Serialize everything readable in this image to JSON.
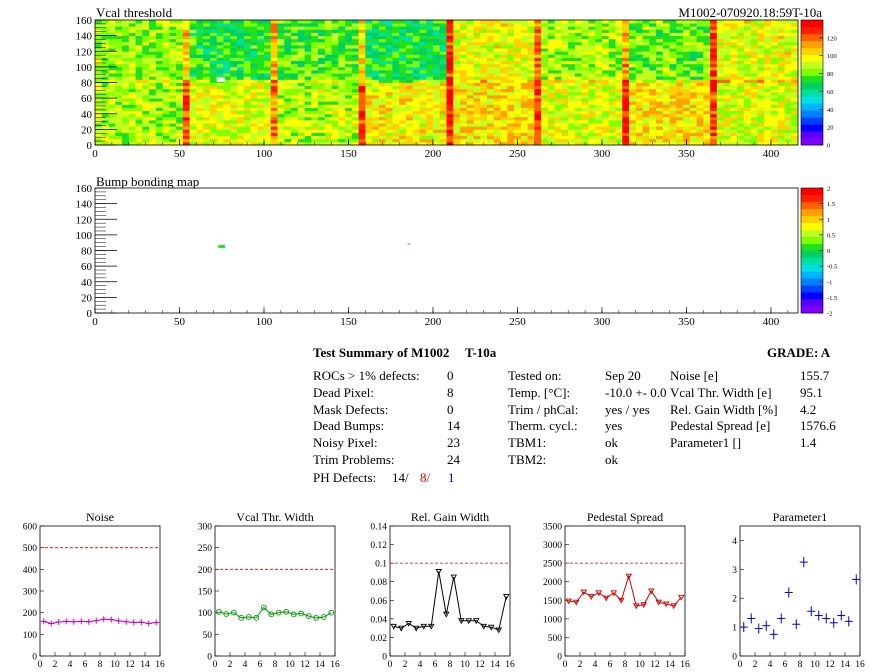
{
  "map1": {
    "title": "Vcal threshold",
    "id": "M1002-070920.18:59T-10a",
    "x_ticks": [
      "0",
      "50",
      "100",
      "150",
      "200",
      "250",
      "300",
      "350",
      "400"
    ],
    "y_ticks": [
      "0",
      "20",
      "40",
      "60",
      "80",
      "100",
      "120",
      "140",
      "160"
    ],
    "z_ticks": [
      "0",
      "20",
      "40",
      "60",
      "80",
      "100",
      "120"
    ],
    "xlim": [
      0,
      416
    ],
    "ylim": [
      0,
      160
    ],
    "zlim": [
      0,
      140
    ]
  },
  "map2": {
    "title": "Bump bonding map",
    "x_ticks": [
      "0",
      "50",
      "100",
      "150",
      "200",
      "250",
      "300",
      "350",
      "400"
    ],
    "y_ticks": [
      "0",
      "20",
      "40",
      "60",
      "80",
      "100",
      "120",
      "140",
      "160"
    ],
    "z_ticks": [
      "-2",
      "-1.5",
      "-1",
      "-0.5",
      "0",
      "0.5",
      "1",
      "1.5",
      "2"
    ],
    "xlim": [
      0,
      416
    ],
    "ylim": [
      0,
      160
    ],
    "zlim": [
      -2,
      2
    ]
  },
  "summary": {
    "heading": "Test Summary of M1002",
    "temp_tag": "T-10a",
    "grade_label": "GRADE:  A",
    "col1": [
      {
        "label": "ROCs > 1% defects:",
        "value": "0"
      },
      {
        "label": "Dead Pixel:",
        "value": "8"
      },
      {
        "label": "Mask Defects:",
        "value": "0"
      },
      {
        "label": "Dead Bumps:",
        "value": "14"
      },
      {
        "label": "Noisy Pixel:",
        "value": "23"
      },
      {
        "label": "Trim Problems:",
        "value": "24"
      }
    ],
    "ph_label": "PH Defects:",
    "ph_values": [
      "14/",
      "8/",
      "1"
    ],
    "col2": [
      {
        "label": "Tested on:",
        "value": "Sep 20"
      },
      {
        "label": "Temp. [°C]:",
        "value": "-10.0 +- 0.0"
      },
      {
        "label": "Trim / phCal:",
        "value": "yes / yes"
      },
      {
        "label": "Therm. cycl.:",
        "value": "yes"
      },
      {
        "label": "TBM1:",
        "value": "ok"
      },
      {
        "label": "TBM2:",
        "value": "ok"
      }
    ],
    "col3": [
      {
        "label": "Noise [e]",
        "value": "155.7"
      },
      {
        "label": "Vcal Thr. Width [e]",
        "value": "95.1"
      },
      {
        "label": "Rel. Gain Width [%]",
        "value": "4.2"
      },
      {
        "label": "Pedestal Spread [e]",
        "value": "1576.6"
      },
      {
        "label": "Parameter1 []",
        "value": "1.4"
      }
    ]
  },
  "chart_data": [
    {
      "type": "line",
      "title": "Noise",
      "x": [
        0,
        1,
        2,
        3,
        4,
        5,
        6,
        7,
        8,
        9,
        10,
        11,
        12,
        13,
        14,
        15
      ],
      "values": [
        160,
        150,
        157,
        160,
        158,
        160,
        158,
        163,
        170,
        168,
        162,
        158,
        155,
        156,
        150,
        155
      ],
      "ylim": [
        0,
        600
      ],
      "xlim": [
        0,
        16
      ],
      "limit_line": 500,
      "color": "#cc00cc",
      "marker": "cross",
      "y_ticks": [
        "0",
        "100",
        "200",
        "300",
        "400",
        "500",
        "600"
      ],
      "x_ticks": [
        "0",
        "2",
        "4",
        "6",
        "8",
        "10",
        "12",
        "14",
        "16"
      ]
    },
    {
      "type": "line",
      "title": "Vcal Thr. Width",
      "x": [
        0,
        1,
        2,
        3,
        4,
        5,
        6,
        7,
        8,
        9,
        10,
        11,
        12,
        13,
        14,
        15
      ],
      "values": [
        102,
        97,
        100,
        88,
        90,
        88,
        112,
        96,
        100,
        102,
        96,
        98,
        92,
        88,
        90,
        100
      ],
      "ylim": [
        0,
        300
      ],
      "xlim": [
        0,
        16
      ],
      "limit_line": 200,
      "color": "#009900",
      "marker": "circle",
      "y_ticks": [
        "0",
        "50",
        "100",
        "150",
        "200",
        "250",
        "300"
      ],
      "x_ticks": [
        "0",
        "2",
        "4",
        "6",
        "8",
        "10",
        "12",
        "14",
        "16"
      ]
    },
    {
      "type": "line",
      "title": "Rel. Gain Width",
      "x": [
        0,
        1,
        2,
        3,
        4,
        5,
        6,
        7,
        8,
        9,
        10,
        11,
        12,
        13,
        14,
        15
      ],
      "values": [
        0.032,
        0.03,
        0.035,
        0.03,
        0.032,
        0.032,
        0.091,
        0.045,
        0.085,
        0.038,
        0.038,
        0.038,
        0.032,
        0.031,
        0.028,
        0.064
      ],
      "ylim": [
        0,
        0.14
      ],
      "xlim": [
        0,
        16
      ],
      "limit_line": 0.1,
      "color": "#000000",
      "marker": "triangle",
      "y_ticks": [
        "0",
        "0.02",
        "0.04",
        "0.06",
        "0.08",
        "0.1",
        "0.12",
        "0.14"
      ],
      "x_ticks": [
        "0",
        "2",
        "4",
        "6",
        "8",
        "10",
        "12",
        "14",
        "16"
      ]
    },
    {
      "type": "line",
      "title": "Pedestal Spread",
      "x": [
        0,
        1,
        2,
        3,
        4,
        5,
        6,
        7,
        8,
        9,
        10,
        11,
        12,
        13,
        14,
        15
      ],
      "values": [
        1480,
        1450,
        1720,
        1600,
        1700,
        1560,
        1700,
        1500,
        2150,
        1350,
        1380,
        1750,
        1450,
        1400,
        1350,
        1580
      ],
      "ylim": [
        0,
        3500
      ],
      "xlim": [
        0,
        16
      ],
      "limit_line": 2500,
      "color": "#cc0000",
      "marker": "triangle",
      "y_ticks": [
        "0",
        "500",
        "1000",
        "1500",
        "2000",
        "2500",
        "3000",
        "3500"
      ],
      "x_ticks": [
        "0",
        "2",
        "4",
        "6",
        "8",
        "10",
        "12",
        "14",
        "16"
      ]
    },
    {
      "type": "scatter",
      "title": "Parameter1",
      "x": [
        0,
        1,
        2,
        3,
        4,
        5,
        6,
        7,
        8,
        9,
        10,
        11,
        12,
        13,
        14,
        15
      ],
      "values": [
        1.0,
        1.3,
        0.95,
        1.05,
        0.75,
        1.3,
        2.2,
        1.1,
        3.25,
        1.55,
        1.4,
        1.3,
        1.15,
        1.4,
        1.2,
        2.65
      ],
      "ylim": [
        0,
        4.5
      ],
      "xlim": [
        0,
        16
      ],
      "color": "#0000cc",
      "marker": "cross",
      "y_ticks": [
        "0",
        "1",
        "2",
        "3",
        "4"
      ],
      "x_ticks": [
        "0",
        "2",
        "4",
        "6",
        "8",
        "10",
        "12",
        "14",
        "16"
      ]
    }
  ]
}
